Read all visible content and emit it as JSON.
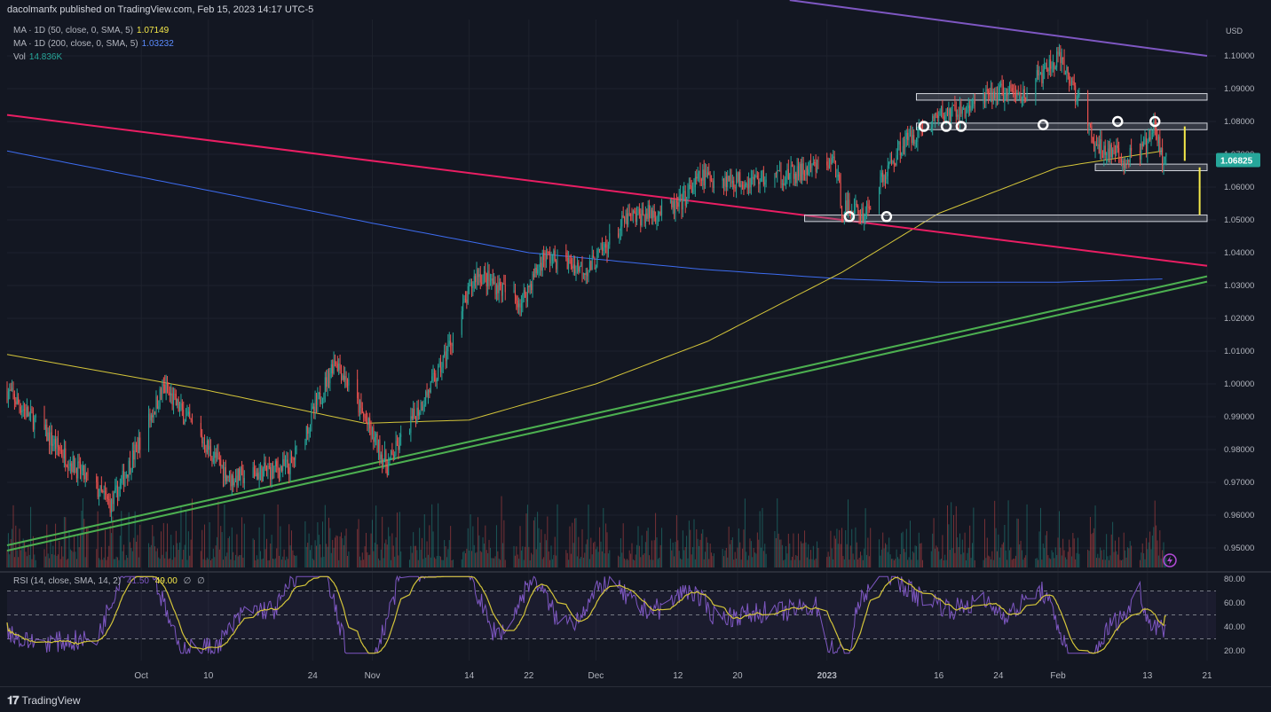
{
  "header": {
    "publisher": "dacolmanfx published on TradingView.com, Feb 15, 2023 14:17 UTC-5"
  },
  "legend": [
    {
      "label": "MA · 1D (50, close, 0, SMA, 5)",
      "value": "1.07149",
      "color": "#f5e94a"
    },
    {
      "label": "MA · 1D (200, close, 0, SMA, 5)",
      "value": "1.03232",
      "color": "#3d7dff"
    },
    {
      "label": "Vol",
      "value": "14.836K",
      "color": "#26a69a"
    }
  ],
  "rsi_legend": {
    "label": "RSI (14, close, SMA, 14, 2)",
    "rsi": "41.50",
    "ma": "49.00",
    "extra1": "∅",
    "extra2": "∅"
  },
  "footer": {
    "brand": "TradingView"
  },
  "chart_data": [
    {
      "type": "line",
      "subtype": "candlestick",
      "currency": "USD",
      "last_price": "1.06825",
      "ylim": [
        0.944,
        1.114
      ],
      "y_ticks": [
        "1.10000",
        "1.09000",
        "1.08000",
        "1.07000",
        "1.06000",
        "1.05000",
        "1.04000",
        "1.03000",
        "1.02000",
        "1.01000",
        "1.00000",
        "0.99000",
        "0.98000",
        "0.97000",
        "0.96000",
        "0.95000"
      ],
      "x_ticks": [
        "Oct",
        "10",
        "24",
        "Nov",
        "14",
        "22",
        "Dec",
        "12",
        "20",
        "2023",
        "16",
        "24",
        "Feb",
        "13",
        "21"
      ],
      "close_anchors": [
        [
          "2022-09-13",
          0.998
        ],
        [
          "2022-09-22",
          0.975
        ],
        [
          "2022-09-27",
          0.963
        ],
        [
          "2022-10-04",
          0.999
        ],
        [
          "2022-10-13",
          0.971
        ],
        [
          "2022-10-21",
          0.975
        ],
        [
          "2022-10-25",
          0.996
        ],
        [
          "2022-10-27",
          1.008
        ],
        [
          "2022-11-03",
          0.975
        ],
        [
          "2022-11-10",
          1.004
        ],
        [
          "2022-11-15",
          1.034
        ],
        [
          "2022-11-21",
          1.025
        ],
        [
          "2022-11-24",
          1.039
        ],
        [
          "2022-11-30",
          1.035
        ],
        [
          "2022-12-05",
          1.05
        ],
        [
          "2022-12-12",
          1.054
        ],
        [
          "2022-12-15",
          1.063
        ],
        [
          "2022-12-21",
          1.062
        ],
        [
          "2022-12-28",
          1.064
        ],
        [
          "2023-01-02",
          1.068
        ],
        [
          "2023-01-03",
          1.054
        ],
        [
          "2023-01-06",
          1.052
        ],
        [
          "2023-01-11",
          1.073
        ],
        [
          "2023-01-16",
          1.082
        ],
        [
          "2023-01-19",
          1.083
        ],
        [
          "2023-01-24",
          1.089
        ],
        [
          "2023-01-27",
          1.088
        ],
        [
          "2023-02-01",
          1.099
        ],
        [
          "2023-02-03",
          1.091
        ],
        [
          "2023-02-06",
          1.072
        ],
        [
          "2023-02-08",
          1.071
        ],
        [
          "2023-02-10",
          1.068
        ],
        [
          "2023-02-13",
          1.073
        ],
        [
          "2023-02-14",
          1.078
        ],
        [
          "2023-02-15",
          1.068
        ]
      ],
      "ma50_anchors": [
        [
          "2022-09-13",
          1.009
        ],
        [
          "2022-10-10",
          0.998
        ],
        [
          "2022-10-31",
          0.988
        ],
        [
          "2022-11-14",
          0.989
        ],
        [
          "2022-12-01",
          1.0
        ],
        [
          "2022-12-16",
          1.013
        ],
        [
          "2023-01-03",
          1.034
        ],
        [
          "2023-01-16",
          1.052
        ],
        [
          "2023-02-01",
          1.066
        ],
        [
          "2023-02-15",
          1.071
        ]
      ],
      "ma200_anchors": [
        [
          "2022-09-13",
          1.071
        ],
        [
          "2022-10-10",
          1.059
        ],
        [
          "2022-11-01",
          1.049
        ],
        [
          "2022-11-22",
          1.04
        ],
        [
          "2022-12-15",
          1.035
        ],
        [
          "2023-01-03",
          1.032
        ],
        [
          "2023-01-16",
          1.031
        ],
        [
          "2023-02-01",
          1.031
        ],
        [
          "2023-02-15",
          1.032
        ]
      ],
      "trendlines": [
        {
          "name": "resistance-top",
          "color": "#7e57c2",
          "points": [
            [
              "2022-12-27",
              1.117
            ],
            [
              "2023-02-21",
              1.1
            ]
          ]
        },
        {
          "name": "resistance-red",
          "color": "#e91e63",
          "points": [
            [
              "2022-09-13",
              1.082
            ],
            [
              "2023-02-21",
              1.036
            ]
          ]
        },
        {
          "name": "support-green",
          "color": "#4caf50",
          "points": [
            [
              "2022-09-13",
              0.95
            ],
            [
              "2023-02-21",
              1.032
            ]
          ]
        }
      ],
      "zones": [
        {
          "name": "zone-1.0875",
          "from": "2023-01-13",
          "to": "2023-02-21",
          "low": 1.0865,
          "high": 1.0885
        },
        {
          "name": "zone-1.0785",
          "from": "2023-01-13",
          "to": "2023-02-21",
          "low": 1.0775,
          "high": 1.0795
        },
        {
          "name": "zone-1.066",
          "from": "2023-02-06",
          "to": "2023-02-21",
          "low": 1.065,
          "high": 1.067
        },
        {
          "name": "zone-1.0505",
          "from": "2022-12-29",
          "to": "2023-02-21",
          "low": 1.0495,
          "high": 1.0515
        }
      ],
      "touch_points": [
        [
          "2023-01-04",
          1.051
        ],
        [
          "2023-01-09",
          1.051
        ],
        [
          "2023-01-14",
          1.0785
        ],
        [
          "2023-01-17",
          1.0785
        ],
        [
          "2023-01-19",
          1.0785
        ],
        [
          "2023-01-30",
          1.079
        ],
        [
          "2023-02-09",
          1.08
        ],
        [
          "2023-02-14",
          1.08
        ]
      ],
      "measure_lines": [
        {
          "date": "2023-02-18",
          "from": 1.0785,
          "to": 1.068,
          "color": "#f5e94a"
        },
        {
          "date": "2023-02-20",
          "from": 1.066,
          "to": 1.0515,
          "color": "#f5e94a"
        }
      ],
      "volume": {
        "last": "14.836K"
      }
    },
    {
      "type": "line",
      "name": "RSI",
      "ylim": [
        14,
        84
      ],
      "y_ticks": [
        "80.00",
        "60.00",
        "40.00",
        "20.00"
      ],
      "bands": [
        30,
        50,
        70
      ],
      "rsi_last": 41.5,
      "ma_last": 49.0
    }
  ],
  "colors": {
    "bull": "#26a69a",
    "bear": "#ef5350",
    "bg": "#131722",
    "grid": "#1e222d",
    "rsi": "#7e57c2",
    "rsi_ma": "#f5e94a"
  }
}
